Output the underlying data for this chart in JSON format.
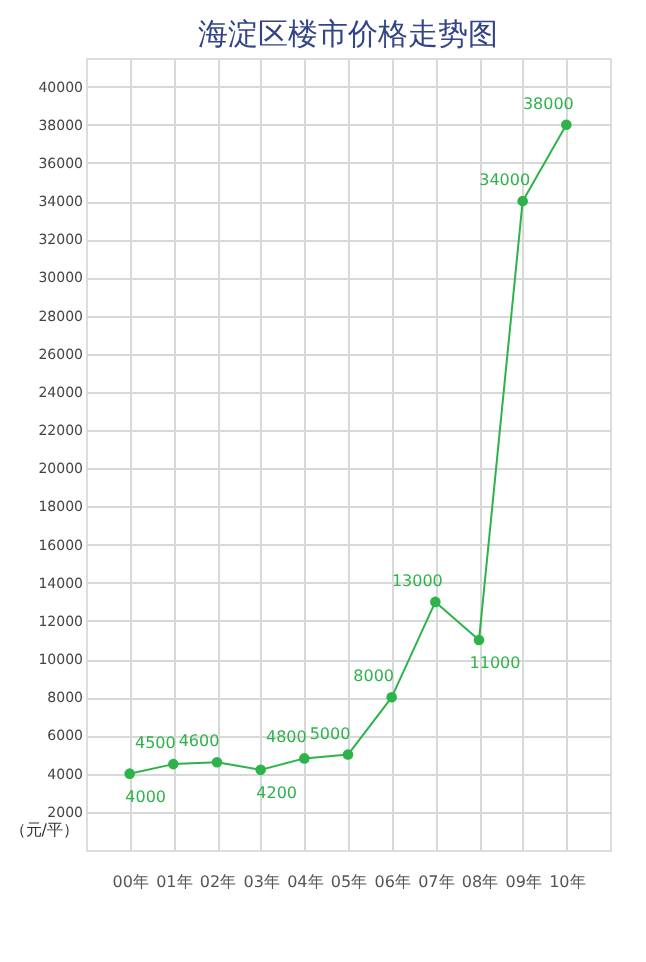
{
  "chart_data": {
    "type": "line",
    "title": "海淀区楼市价格走势图",
    "ylabel": "（元/平）",
    "categories": [
      "00年",
      "01年",
      "02年",
      "03年",
      "04年",
      "05年",
      "06年",
      "07年",
      "08年",
      "09年",
      "10年"
    ],
    "series": [
      {
        "color": "#2db34a",
        "values": [
          4000,
          4500,
          4600,
          4200,
          4800,
          5000,
          8000,
          13000,
          11000,
          34000,
          38000
        ]
      }
    ],
    "ylim": [
      0,
      41500
    ],
    "yticks": [
      2000,
      4000,
      6000,
      8000,
      10000,
      12000,
      14000,
      16000,
      18000,
      20000,
      22000,
      24000,
      26000,
      28000,
      30000,
      32000,
      34000,
      36000,
      38000,
      40000
    ],
    "grid": true,
    "marker": "circle",
    "line_style": "solid",
    "data_labels": true,
    "legend": false
  }
}
